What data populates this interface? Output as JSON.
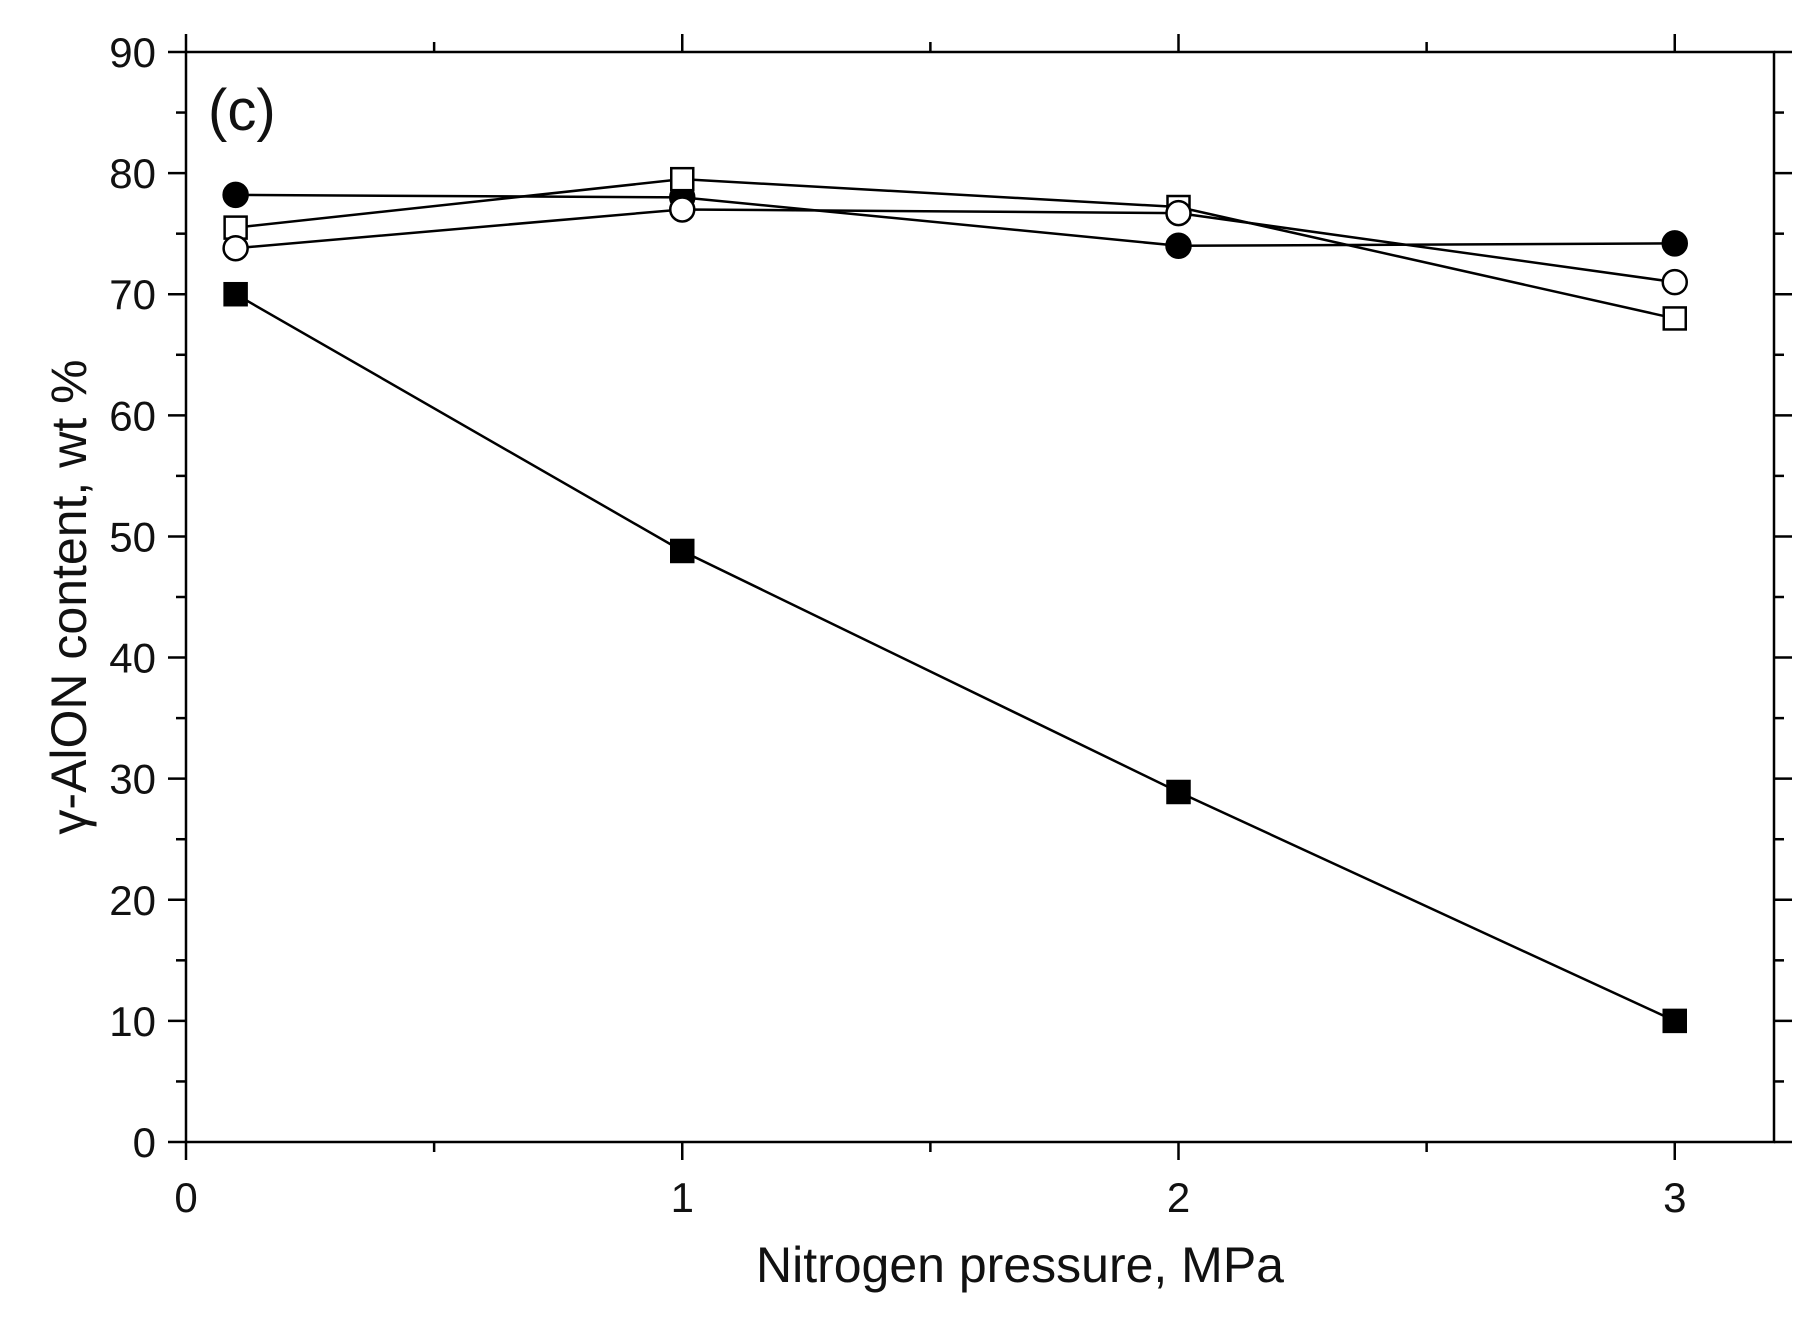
{
  "chart_data": {
    "type": "line",
    "title": "",
    "panel_label": "(c)",
    "xlabel": "Nitrogen pressure, MPa",
    "ylabel": "γ-AlON content, wt %",
    "xlim": [
      0,
      3.2
    ],
    "ylim": [
      0,
      90
    ],
    "x_ticks": [
      0,
      1,
      2,
      3
    ],
    "y_ticks": [
      0,
      10,
      20,
      30,
      40,
      50,
      60,
      70,
      80,
      90
    ],
    "grid": false,
    "x": [
      0.1,
      1,
      2,
      3
    ],
    "series": [
      {
        "name": "filled-square",
        "marker": "square",
        "filled": true,
        "values": [
          70,
          48.8,
          28.9,
          10
        ]
      },
      {
        "name": "filled-circle",
        "marker": "circle",
        "filled": true,
        "values": [
          78.2,
          78,
          74,
          74.2
        ]
      },
      {
        "name": "open-square",
        "marker": "square",
        "filled": false,
        "values": [
          75.5,
          79.5,
          77.2,
          68
        ]
      },
      {
        "name": "open-circle",
        "marker": "circle",
        "filled": false,
        "values": [
          73.8,
          77,
          76.7,
          71
        ]
      }
    ]
  }
}
